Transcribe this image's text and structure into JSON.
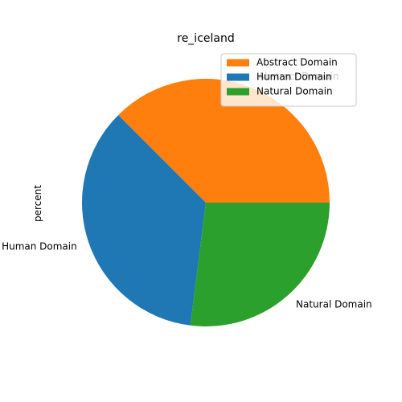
{
  "chart_data": {
    "type": "pie",
    "title": "re_iceland",
    "ylabel": "percent",
    "categories": [
      "Abstract Domain",
      "Human Domain",
      "Natural Domain"
    ],
    "values": [
      37.5,
      35.5,
      27.0
    ],
    "colors": [
      "#ff7f0e",
      "#1f77b4",
      "#2ca02c"
    ],
    "start_angle_deg": 0,
    "direction": "counterclockwise",
    "legend": {
      "position": "upper-right",
      "entries": [
        "Abstract Domain",
        "Human Domain",
        "Natural Domain"
      ]
    }
  }
}
